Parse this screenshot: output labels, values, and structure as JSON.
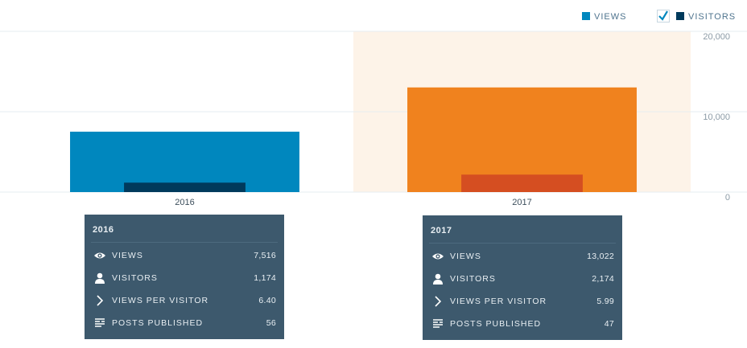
{
  "chart_data": {
    "type": "bar",
    "categories": [
      "2016",
      "2017"
    ],
    "band_colors": [
      "#ffffff",
      "#fdf3e8"
    ],
    "series": [
      {
        "name": "VIEWS",
        "color": "#0087be",
        "bar_colors": [
          "#0087be",
          "#f0821e"
        ],
        "values": [
          7516,
          13022
        ]
      },
      {
        "name": "VISITORS",
        "color": "#003a5c",
        "bar_colors": [
          "#003a5c",
          "#d54e21"
        ],
        "values": [
          1174,
          2174
        ]
      }
    ],
    "ylim": [
      0,
      20000
    ],
    "yticks": [
      0,
      {
        "value": 10000,
        "label": "10,000"
      },
      {
        "value": 20000,
        "label": "20,000"
      }
    ],
    "grid": true
  },
  "tooltips": [
    {
      "title": "2016",
      "rows": [
        {
          "label": "VIEWS",
          "value": "7,516"
        },
        {
          "label": "VISITORS",
          "value": "1,174"
        },
        {
          "label": "VIEWS PER VISITOR",
          "value": "6.40"
        },
        {
          "label": "POSTS PUBLISHED",
          "value": "56"
        }
      ]
    },
    {
      "title": "2017",
      "rows": [
        {
          "label": "VIEWS",
          "value": "13,022"
        },
        {
          "label": "VISITORS",
          "value": "2,174"
        },
        {
          "label": "VIEWS PER VISITOR",
          "value": "5.99"
        },
        {
          "label": "POSTS PUBLISHED",
          "value": "47"
        }
      ]
    }
  ]
}
